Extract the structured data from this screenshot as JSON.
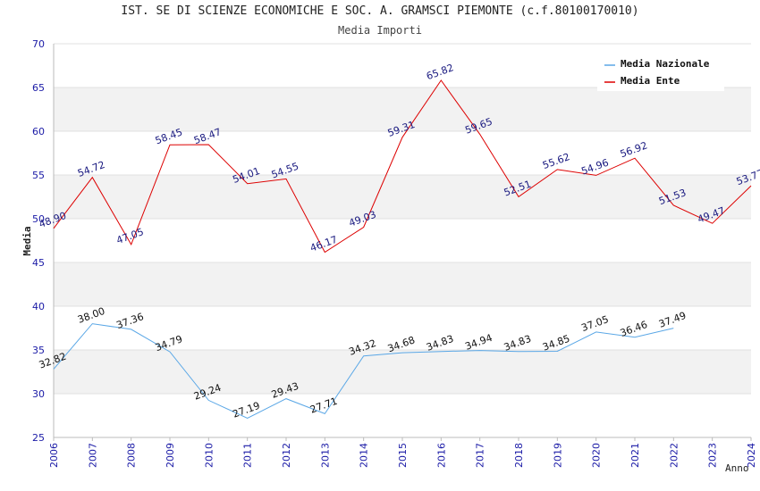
{
  "chart_data": {
    "type": "line",
    "title": "IST. SE DI SCIENZE ECONOMICHE E SOC. A. GRAMSCI PIEMONTE (c.f.80100170010)",
    "subtitle": "Media Importi",
    "xlabel": "Anno",
    "ylabel": "Media",
    "ylim": [
      25,
      70
    ],
    "yticks": [
      25,
      30,
      35,
      40,
      45,
      50,
      55,
      60,
      65,
      70
    ],
    "grid": true,
    "legend_position": "top-right",
    "x": [
      "2006",
      "2007",
      "2008",
      "2009",
      "2010",
      "2011",
      "2012",
      "2013",
      "2014",
      "2015",
      "2016",
      "2017",
      "2018",
      "2019",
      "2020",
      "2021",
      "2022",
      "2023",
      "2024"
    ],
    "series": [
      {
        "name": "Media Nazionale",
        "color": "#5aa7e6",
        "values": [
          32.82,
          38.0,
          37.36,
          34.79,
          29.24,
          27.19,
          29.43,
          27.71,
          34.32,
          34.68,
          34.83,
          34.94,
          34.83,
          34.85,
          37.05,
          36.46,
          37.49,
          null,
          null
        ],
        "labels": [
          "32.82",
          "38.00",
          "37.36",
          "34.79",
          "29.24",
          "27.19",
          "29.43",
          "27.71",
          "34.32",
          "34.68",
          "34.83",
          "34.94",
          "34.83",
          "34.85",
          "37.05",
          "36.46",
          "37.49",
          null,
          null
        ]
      },
      {
        "name": "Media Ente",
        "color": "#dd0000",
        "values": [
          48.9,
          54.72,
          47.05,
          58.45,
          58.47,
          54.01,
          54.55,
          46.17,
          49.03,
          59.31,
          65.82,
          59.65,
          52.51,
          55.62,
          54.96,
          56.92,
          51.53,
          49.47,
          53.77
        ],
        "labels": [
          "48.90",
          "54.72",
          "47.05",
          "58.45",
          "58.47",
          "54.01",
          "54.55",
          "46.17",
          "49.03",
          "59.31",
          "65.82",
          "59.65",
          "52.51",
          "55.62",
          "54.96",
          "56.92",
          "51.53",
          "49.47",
          "53.77"
        ]
      }
    ]
  }
}
